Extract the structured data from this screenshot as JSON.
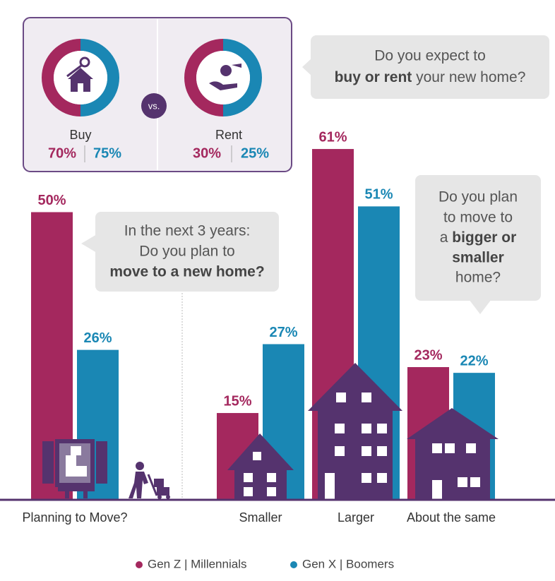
{
  "chart_data": {
    "type": "bar",
    "categories": [
      "Planning to Move?",
      "Smaller",
      "Larger",
      "About the same"
    ],
    "series": [
      {
        "name": "Gen Z | Millennials",
        "color": "#a4285e",
        "values": [
          50,
          15,
          61,
          23
        ],
        "value_labels": [
          "50%",
          "15%",
          "61%",
          "23%"
        ]
      },
      {
        "name": "Gen X | Boomers",
        "color": "#1a87b4",
        "values": [
          26,
          27,
          51,
          22
        ],
        "value_labels": [
          "26%",
          "27%",
          "51%",
          "22%"
        ]
      }
    ],
    "legend": "bottom"
  },
  "purchase": {
    "separator": "vs.",
    "options": [
      {
        "label": "Buy",
        "values": [
          "70%",
          "75%"
        ]
      },
      {
        "label": "Rent",
        "values": [
          "30%",
          "25%"
        ]
      }
    ]
  },
  "callouts": [
    [
      "Do you expect to",
      "buy or rent",
      " your new home?"
    ],
    [
      "In the next 3 years:",
      "Do you plan to",
      "move to a new home?"
    ],
    [
      "Do you plan",
      "to move to",
      "a ",
      "bigger or",
      "smaller",
      "home?"
    ]
  ]
}
